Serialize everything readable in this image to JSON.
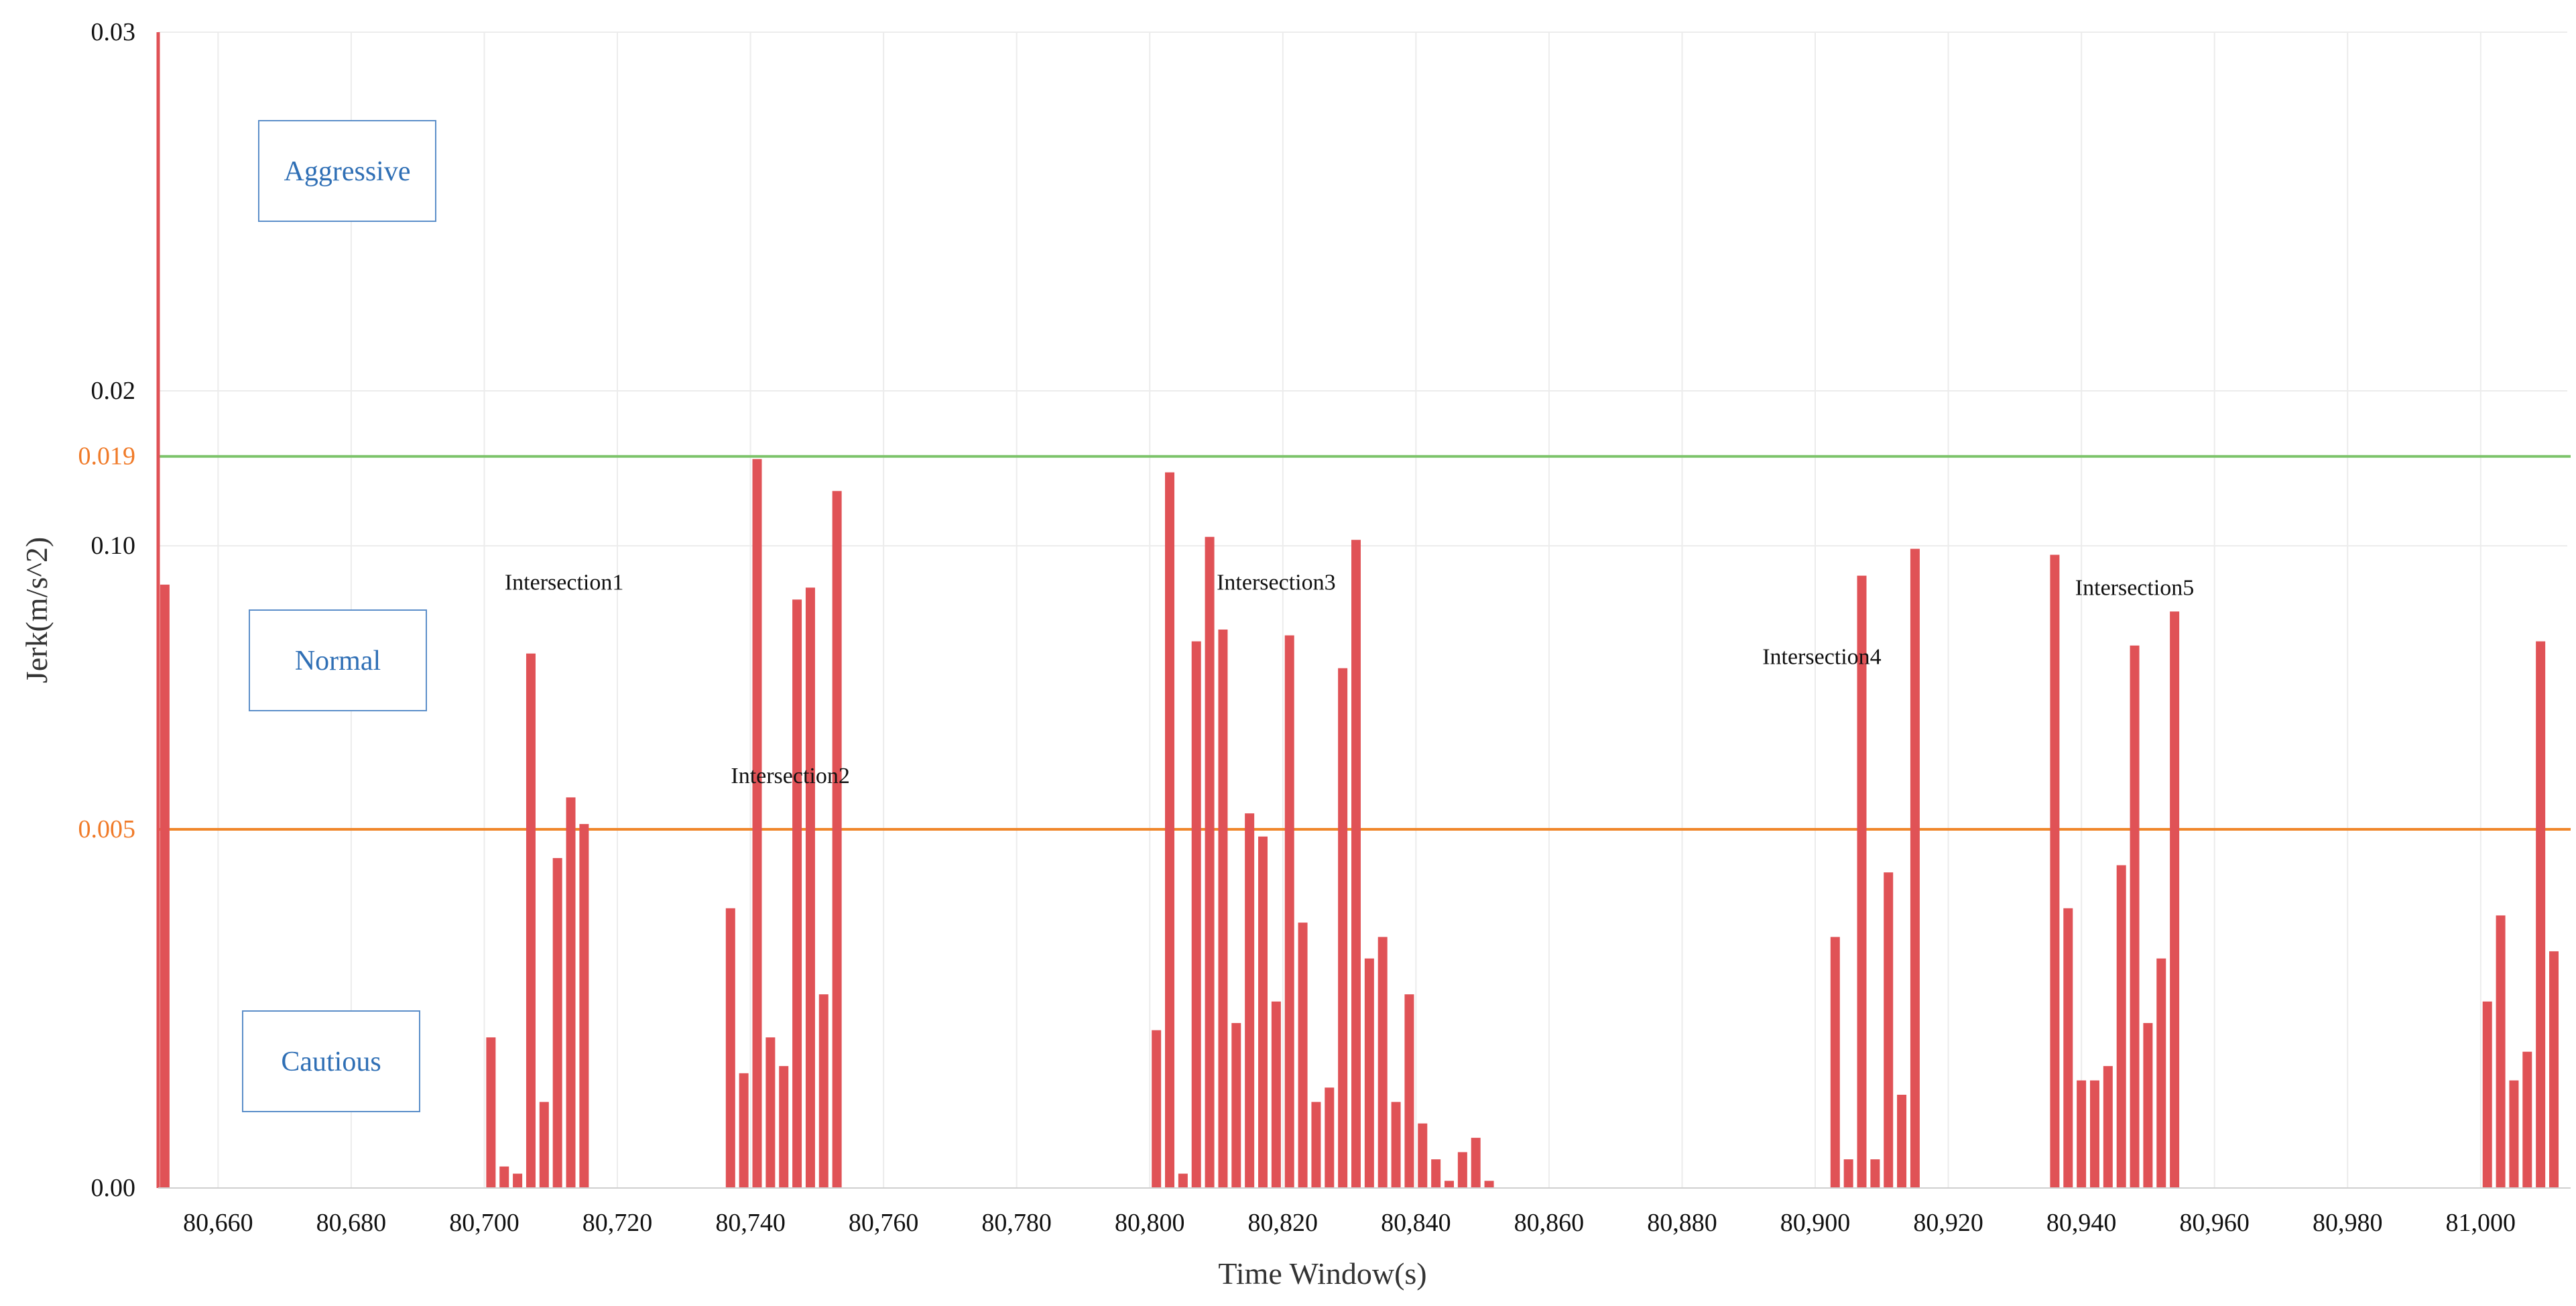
{
  "chart_data": {
    "type": "bar",
    "title": "",
    "xlabel": "Time Window(s)",
    "ylabel": "Jerk(m/s^2)",
    "xlim": [
      80651,
      81011
    ],
    "x_ticks": [
      "80,660",
      "80,680",
      "80,700",
      "80,720",
      "80,740",
      "80,760",
      "80,780",
      "80,800",
      "80,820",
      "80,840",
      "80,860",
      "80,880",
      "80,900",
      "80,920",
      "80,940",
      "80,960",
      "80,980",
      "81,000"
    ],
    "x_tick_values": [
      80660,
      80680,
      80700,
      80720,
      80740,
      80760,
      80780,
      80800,
      80820,
      80840,
      80860,
      80880,
      80900,
      80920,
      80940,
      80960,
      80980,
      81000
    ],
    "y_ticks": [
      {
        "label": "0.03",
        "level": 0.03,
        "style": "normal"
      },
      {
        "label": "0.02",
        "level": 0.02,
        "style": "normal"
      },
      {
        "label": "0.019",
        "level": 0.019,
        "style": "orange"
      },
      {
        "label": "0.10",
        "level": 0.1,
        "style": "normal"
      },
      {
        "label": "0.005",
        "level": 0.005,
        "style": "orange"
      },
      {
        "label": "0.00",
        "level": 0.0,
        "style": "normal"
      }
    ],
    "y_scale_note": "piecewise: 0.00-0.005, 0.005-0.10, 0.10-0.019, 0.019-0.02, 0.02-0.03 as printed",
    "grid": true,
    "thresholds": [
      {
        "value": 0.019,
        "color": "#7cc36a"
      },
      {
        "value": 0.005,
        "color": "#f0862a"
      }
    ],
    "zones": [
      {
        "label": "Aggressive"
      },
      {
        "label": "Normal"
      },
      {
        "label": "Cautious"
      }
    ],
    "annotations": [
      {
        "text": "Intersection1",
        "x": 80712,
        "level": 0.014
      },
      {
        "text": "Intersection2",
        "x": 80746,
        "level": 0.0205
      },
      {
        "text": "Intersection3",
        "x": 80819,
        "level": 0.014
      },
      {
        "text": "Intersection4",
        "x": 80901,
        "level": 0.0112
      },
      {
        "text": "Intersection5",
        "x": 80948,
        "level": 0.0138
      }
    ],
    "bar_color": "#e05256",
    "series": [
      {
        "x": [
          80652,
          80701,
          80703,
          80705,
          80707,
          80709,
          80711,
          80713,
          80715,
          80737,
          80739,
          80741,
          80743,
          80745,
          80747,
          80749,
          80751,
          80753,
          80801,
          80803,
          80805,
          80807,
          80809,
          80811,
          80813,
          80815,
          80817,
          80819,
          80821,
          80823,
          80825,
          80827,
          80829,
          80831,
          80833,
          80835,
          80837,
          80839,
          80841,
          80843,
          80845,
          80847,
          80849,
          80851,
          80903,
          80905,
          80907,
          80909,
          80911,
          80913,
          80915,
          80936,
          80938,
          80940,
          80942,
          80944,
          80946,
          80948,
          80950,
          80952,
          80954,
          81001,
          81003,
          81005,
          81007,
          81009,
          81011
        ],
        "values": [
          0.087,
          0.0021,
          0.0003,
          0.0002,
          0.0116,
          0.0012,
          0.0046,
          0.0062,
          0.0052,
          0.0039,
          0.0016,
          0.0189,
          0.0021,
          0.0017,
          0.082,
          0.086,
          0.0027,
          0.0177,
          0.0022,
          0.0184,
          0.0002,
          0.068,
          0.103,
          0.0125,
          0.0023,
          0.0056,
          0.0049,
          0.0026,
          0.07,
          0.0037,
          0.0012,
          0.0014,
          0.059,
          0.102,
          0.0032,
          0.0035,
          0.0012,
          0.0027,
          0.0009,
          0.0004,
          0.0001,
          0.0005,
          0.0007,
          0.0001,
          0.0035,
          0.0004,
          0.09,
          0.0004,
          0.0044,
          0.0013,
          0.099,
          0.097,
          0.0039,
          0.0015,
          0.0015,
          0.0017,
          0.0045,
          0.0119,
          0.0023,
          0.0032,
          0.078,
          0.0026,
          0.0038,
          0.0015,
          0.0019,
          0.068,
          0.0033
        ]
      }
    ]
  }
}
